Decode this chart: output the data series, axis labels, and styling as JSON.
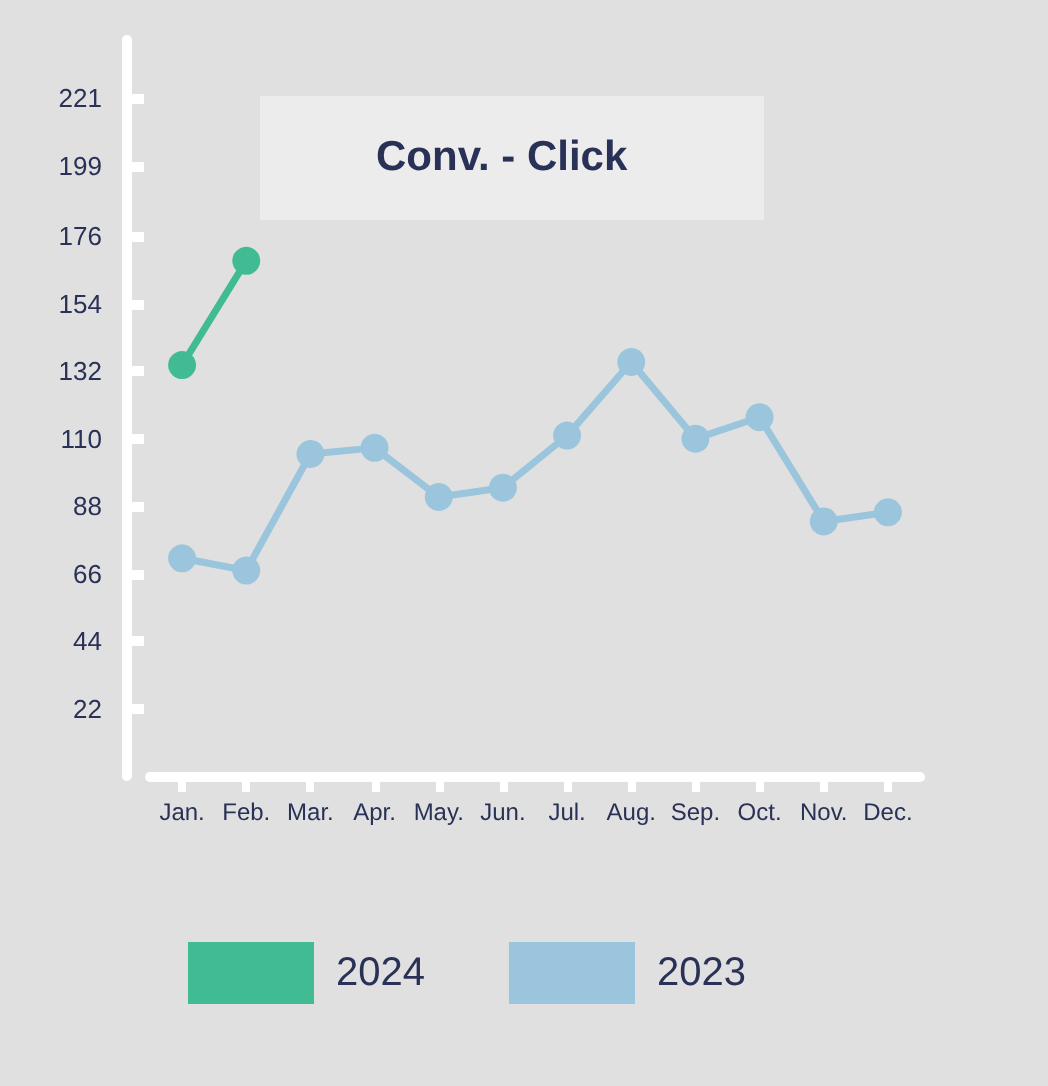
{
  "chart_data": {
    "type": "line",
    "title": "Conv. - Click",
    "categories": [
      "Jan.",
      "Feb.",
      "Mar.",
      "Apr.",
      "May.",
      "Jun.",
      "Jul.",
      "Aug.",
      "Sep.",
      "Oct.",
      "Nov.",
      "Dec."
    ],
    "series": [
      {
        "name": "2024",
        "color": "#41bb93",
        "values": [
          134,
          168,
          null,
          null,
          null,
          null,
          null,
          null,
          null,
          null,
          null,
          null
        ]
      },
      {
        "name": "2023",
        "color": "#9ac5dd",
        "values": [
          71,
          67,
          105,
          107,
          91,
          94,
          111,
          135,
          110,
          117,
          83,
          86
        ]
      }
    ],
    "ylim": [
      0,
      240
    ],
    "yticks": [
      22,
      44,
      66,
      88,
      110,
      132,
      154,
      176,
      199,
      221
    ],
    "legend": "bottom",
    "marker": "circle",
    "line_style": "solid",
    "grid": false
  }
}
